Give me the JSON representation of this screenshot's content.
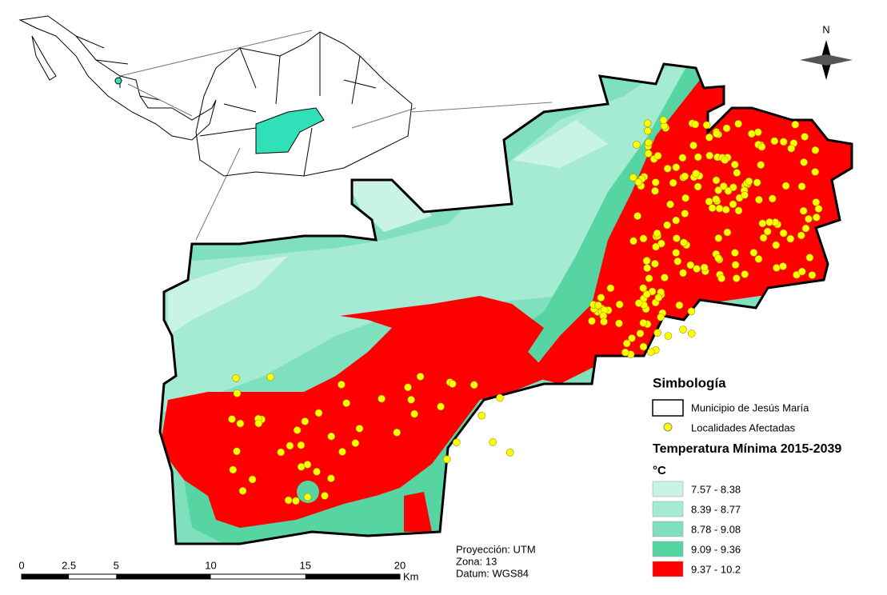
{
  "north": "N",
  "legend": {
    "title": "Simbología",
    "items": [
      "Municipio de Jesús María",
      "Localidades Afectadas"
    ],
    "subtitle": "Temperatura Mínima 2015-2039",
    "unit": "°C",
    "classes": [
      {
        "label": "7.57 - 8.38",
        "color": "#c8f3e6"
      },
      {
        "label": "8.39 - 8.77",
        "color": "#a5ead3"
      },
      {
        "label": "8.78 - 9.08",
        "color": "#80e0be"
      },
      {
        "label": "9.09 - 9.36",
        "color": "#56d4a2"
      },
      {
        "label": "9.37 - 10.2",
        "color": "#ff0000"
      }
    ]
  },
  "projection": [
    "Proyección: UTM",
    "Zona: 13",
    "Datum: WGS84"
  ],
  "scale_bar": {
    "ticks": [
      0,
      2.5,
      5,
      10,
      15,
      20
    ],
    "unit": "Km"
  }
}
